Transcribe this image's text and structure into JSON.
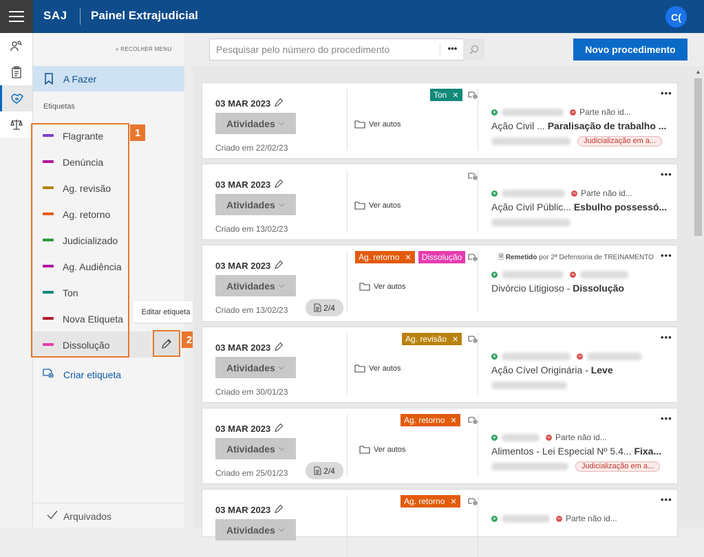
{
  "topbar": {
    "brand": "SAJ",
    "title": "Painel Extrajudicial",
    "avatar_initials": "C("
  },
  "rail": {
    "icons": [
      "people-search-icon",
      "clipboard-icon",
      "handshake-icon",
      "scales-icon"
    ]
  },
  "sidebar": {
    "collapse_label": "RECOLHER MENU",
    "afazer_label": "A Fazer",
    "etiquetas_title": "Etiquetas",
    "tags": [
      {
        "label": "Flagrante",
        "color": "#7a3fc9"
      },
      {
        "label": "Denúncia",
        "color": "#b0139e"
      },
      {
        "label": "Ag. revisão",
        "color": "#b8820e"
      },
      {
        "label": "Ag. retorno",
        "color": "#e35b0c"
      },
      {
        "label": "Judicializado",
        "color": "#2d9c3f"
      },
      {
        "label": "Ag. Audiência",
        "color": "#ad11a3"
      },
      {
        "label": "Ton",
        "color": "#12897a"
      },
      {
        "label": "Nova Etiqueta",
        "color": "#b31d2f"
      },
      {
        "label": "Dissolução",
        "color": "#e83aae"
      }
    ],
    "tooltip": "Editar etiqueta",
    "callout_1": "1",
    "callout_2": "2",
    "create_label": "Criar etiqueta",
    "archived_label": "Arquivados"
  },
  "main": {
    "search_placeholder": "Pesquisar pelo número do procedimento",
    "search_more": "•••",
    "new_button": "Novo procedimento",
    "ver_autos": "Ver autos",
    "ativ_label": "Atividades",
    "cards": [
      {
        "date": "03 MAR 2023",
        "created": "Criado em 22/02/23",
        "docs": "",
        "tags": [
          {
            "label": "Ton",
            "color": "#12897a"
          }
        ],
        "party_status": "Parte não id...",
        "acao": "Ação Civil ...",
        "acao_bold": "Paralisação de trabalho ...",
        "judic": "Judicialização em a...",
        "remetido_bold": "",
        "remetido": ""
      },
      {
        "date": "03 MAR 2023",
        "created": "Criado em 13/02/23",
        "docs": "",
        "tags": [],
        "party_status": "Parte não id...",
        "acao": "Ação Civil Públic...",
        "acao_bold": "Esbulho possessó...",
        "judic": "",
        "remetido_bold": "",
        "remetido": ""
      },
      {
        "date": "03 MAR 2023",
        "created": "Criado em 13/02/23",
        "docs": "2/4",
        "tags": [
          {
            "label": "Ag. retorno",
            "color": "#e35b0c"
          },
          {
            "label": "Dissolução",
            "color": "#e83aae"
          }
        ],
        "party_status": "",
        "acao": "Divórcio Litigioso -",
        "acao_bold": "Dissolução",
        "judic": "",
        "remetido_bold": "Remetido",
        "remetido": "por 2ª Defensoria de TREINAMENTO"
      },
      {
        "date": "03 MAR 2023",
        "created": "Criado em 30/01/23",
        "docs": "",
        "tags": [
          {
            "label": "Ag. revisão",
            "color": "#b8820e"
          }
        ],
        "party_status": "",
        "acao": "Ação Cível Originária -",
        "acao_bold": "Leve",
        "judic": "",
        "remetido_bold": "",
        "remetido": ""
      },
      {
        "date": "03 MAR 2023",
        "created": "Criado em 25/01/23",
        "docs": "2/4",
        "tags": [
          {
            "label": "Ag. retorno",
            "color": "#e35b0c"
          }
        ],
        "party_status": "Parte não id...",
        "acao": "Alimentos - Lei Especial Nº 5.4...",
        "acao_bold": "Fixa...",
        "judic": "Judicialização em a...",
        "remetido_bold": "",
        "remetido": ""
      },
      {
        "date": "03 MAR 2023",
        "created": "",
        "docs": "",
        "tags": [
          {
            "label": "Ag. retorno",
            "color": "#e35b0c"
          }
        ],
        "party_status": "Parte não id...",
        "acao": "",
        "acao_bold": "",
        "judic": "",
        "remetido_bold": "",
        "remetido": ""
      }
    ]
  }
}
